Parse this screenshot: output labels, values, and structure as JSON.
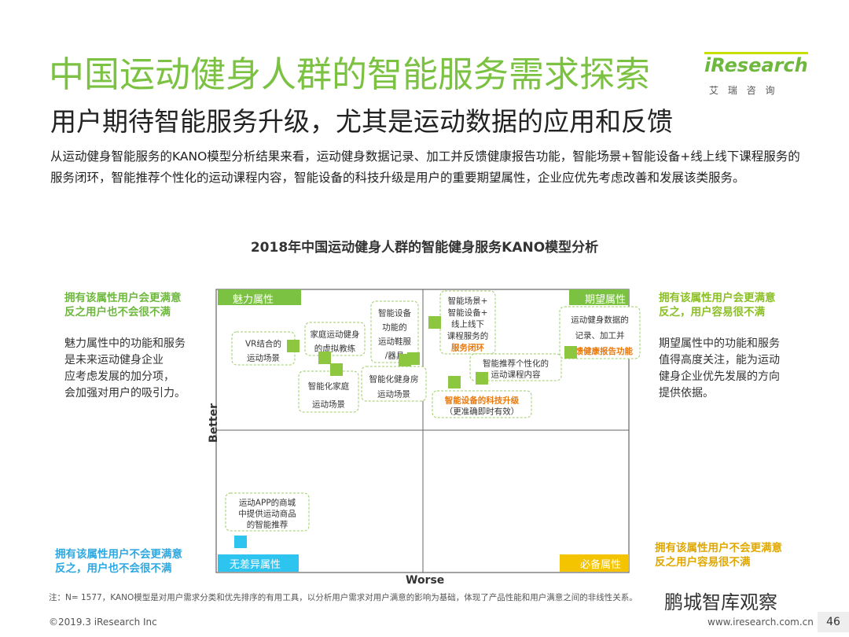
{
  "header": {
    "title": "中国运动健身人群的智能服务需求探索",
    "subtitle": "用户期待智能服务升级，尤其是运动数据的应用和反馈",
    "logo": "iResearch",
    "logo_sub": "艾 瑞 咨 询"
  },
  "summary": "从运动健身智能服务的KANO模型分析结果来看，运动健身数据记录、加工并反馈健康报告功能，智能场景+智能设备+线上线下课程服务的服务闭环，智能推荐个性化的运动课程内容，智能设备的科技升级是用户的重要期望属性，企业应优先考虑改善和发展该类服务。",
  "diagram": {
    "title": "2018年中国运动健身人群的智能健身服务KANO模型分析",
    "y_axis": "Better",
    "x_axis": "Worse",
    "quadrants": [
      "魅力属性",
      "期望属性",
      "无差异属性",
      "必备属性"
    ],
    "items": [
      {
        "lines": [
          "VR结合的",
          "运动场景"
        ]
      },
      {
        "lines": [
          "家庭运动健身",
          "的虚拟教练"
        ]
      },
      {
        "lines": [
          "智能化家庭",
          "运动场景"
        ]
      },
      {
        "lines": [
          "智能设备",
          "功能的",
          "运动鞋服",
          "/器具"
        ]
      },
      {
        "lines": [
          "智能化健身房",
          "运动场景"
        ]
      },
      {
        "lines": [
          "智能场景+",
          "智能设备+",
          "线上线下",
          "课程服务的",
          "服务闭环"
        ]
      },
      {
        "lines": [
          "智能推荐个性化的",
          "运动课程内容"
        ]
      },
      {
        "lines": [
          "智能设备的科技升级",
          "（更准确即时有效）"
        ]
      },
      {
        "lines": [
          "运动健身数据的",
          "记录、加工并",
          "反馈健康报告功能"
        ]
      },
      {
        "lines": [
          "运动APP的商城",
          "中提供运动商品",
          "的智能推荐"
        ]
      }
    ],
    "side_notes": {
      "attractive_head": [
        "拥有该属性用户会更满意",
        "反之用户也不会很不满"
      ],
      "attractive_text": [
        "魅力属性中的功能和服务",
        "是未来运动健身企业",
        "应考虑发展的加分项，",
        "会加强对用户的吸引力。"
      ],
      "expected_head": [
        "拥有该属性用户会更满意",
        "反之，用户容易很不满"
      ],
      "expected_text": [
        "期望属性中的功能和服务",
        "值得高度关注，能为运动",
        "健身企业优先发展的方向",
        "提供依据。"
      ],
      "indifferent_head": [
        "拥有该属性用户不会更满意",
        "反之，用户也不会很不满"
      ],
      "must_head": [
        "拥有该属性用户不会更满意",
        "反之用户容易很不满"
      ]
    }
  },
  "footer": {
    "note": "注：N= 1577，KANO模型是对用户需求分类和优先排序的有用工具，以分析用户需求对用户满意的影响为基础，体现了产品性能和用户满意之间的非线性关系。",
    "copyright": "©2019.3 iResearch Inc",
    "site": "www.iresearch.com.cn",
    "page": "46",
    "watermark": "鹏城智库观察"
  }
}
